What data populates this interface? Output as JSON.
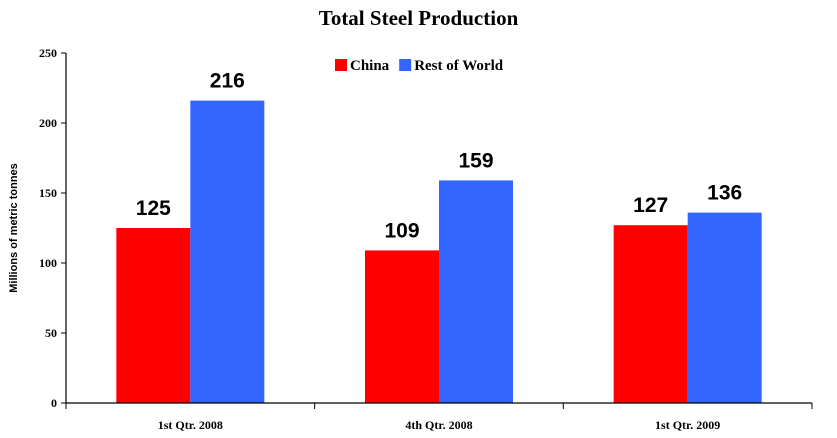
{
  "colors": {
    "china": "#ff0000",
    "rest_of_world": "#3366ff",
    "axis": "#000000",
    "background": "#ffffff"
  },
  "chart_data": {
    "type": "bar",
    "title": "Total Steel Production",
    "xlabel": "",
    "ylabel": "Millions of metric tonnes",
    "categories": [
      "1st Qtr. 2008",
      "4th Qtr. 2008",
      "1st Qtr. 2009"
    ],
    "series": [
      {
        "name": "China",
        "values": [
          125,
          109,
          127
        ],
        "color": "#ff0000"
      },
      {
        "name": "Rest of World",
        "values": [
          216,
          159,
          136
        ],
        "color": "#3366ff"
      }
    ],
    "ylim": [
      0,
      250
    ],
    "yticks": [
      0,
      50,
      100,
      150,
      200,
      250
    ],
    "grid": false,
    "legend_position": "top"
  }
}
